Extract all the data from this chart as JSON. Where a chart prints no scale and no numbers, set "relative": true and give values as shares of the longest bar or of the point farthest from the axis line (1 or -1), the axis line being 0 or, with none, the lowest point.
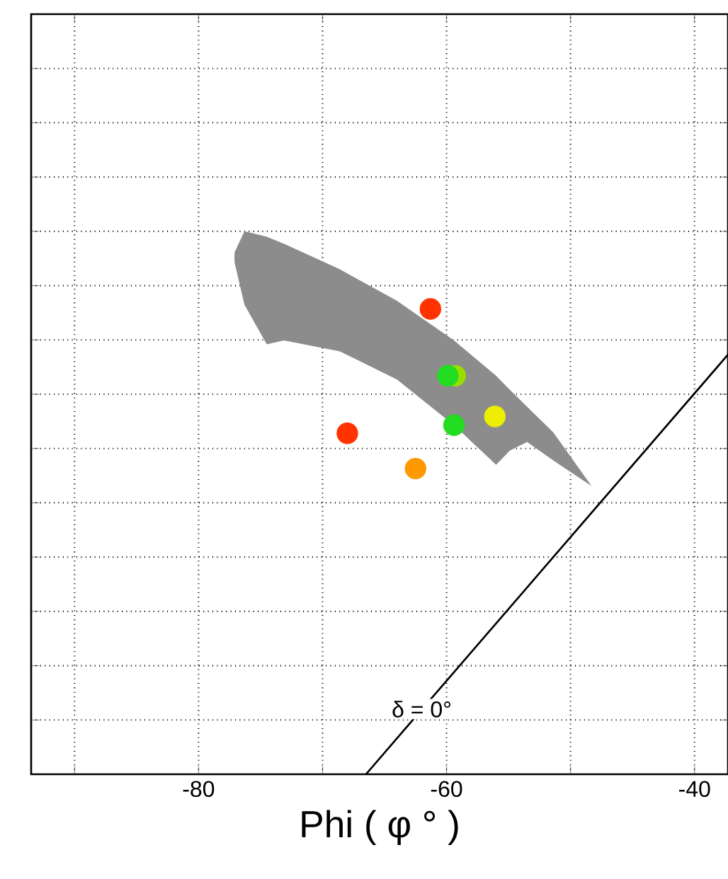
{
  "chart_data": {
    "type": "scatter",
    "xlabel": "Phi ( φ ° )",
    "relative": true,
    "grid": true,
    "xlim": [
      -93.5,
      -37.3
    ],
    "xticks": [
      {
        "value": -90,
        "label": null
      },
      -80,
      {
        "value": -70,
        "label": null
      },
      -60,
      {
        "value": -50,
        "label": null
      },
      -40
    ],
    "tick_labels": "x",
    "series": [
      {
        "type": "area",
        "marker": "none",
        "color": "#8c8c8c",
        "x": [
          -77.1,
          -76.3,
          -74.5,
          -73.1,
          -68.6,
          -64.0,
          -59.4,
          -56.0,
          -54.9,
          -53.5,
          -51.4,
          -48.3,
          -51.4,
          -53.5,
          -54.9,
          -56.0,
          -59.4,
          -64.0,
          -68.6,
          -73.1,
          -74.5,
          -76.3,
          -77.1
        ],
        "values": [
          0.961,
          1.0,
          0.99,
          0.977,
          0.93,
          0.872,
          0.799,
          0.734,
          0.708,
          0.677,
          0.63,
          0.531,
          0.578,
          0.612,
          0.596,
          0.57,
          0.643,
          0.727,
          0.779,
          0.799,
          0.792,
          0.865,
          0.943
        ]
      },
      {
        "type": "line",
        "marker": "none",
        "color": "#000000",
        "x": [
          -66.5,
          -37.3
        ],
        "values": [
          0,
          0.773
        ]
      },
      {
        "marker": "circle",
        "color": "#ff3300",
        "x": [
          -61.3
        ],
        "values": [
          0.857
        ]
      },
      {
        "marker": "circle",
        "color": "#ff3300",
        "x": [
          -68.0
        ],
        "values": [
          0.628
        ]
      },
      {
        "marker": "circle",
        "color": "#ff9900",
        "x": [
          -62.5
        ],
        "values": [
          0.563
        ]
      },
      {
        "marker": "circle",
        "color": "#99dd00",
        "x": [
          -59.3
        ],
        "values": [
          0.734
        ]
      },
      {
        "marker": "circle",
        "color": "#22dd22",
        "x": [
          -59.9
        ],
        "values": [
          0.734
        ]
      },
      {
        "marker": "circle",
        "color": "#22dd22",
        "x": [
          -59.4
        ],
        "values": [
          0.643
        ]
      },
      {
        "marker": "circle",
        "color": "#eeee00",
        "x": [
          -56.1
        ],
        "values": [
          0.659
        ]
      }
    ],
    "annotations": [
      {
        "text": "δ = 0°",
        "x": -62.0,
        "y": 0.12
      }
    ]
  }
}
